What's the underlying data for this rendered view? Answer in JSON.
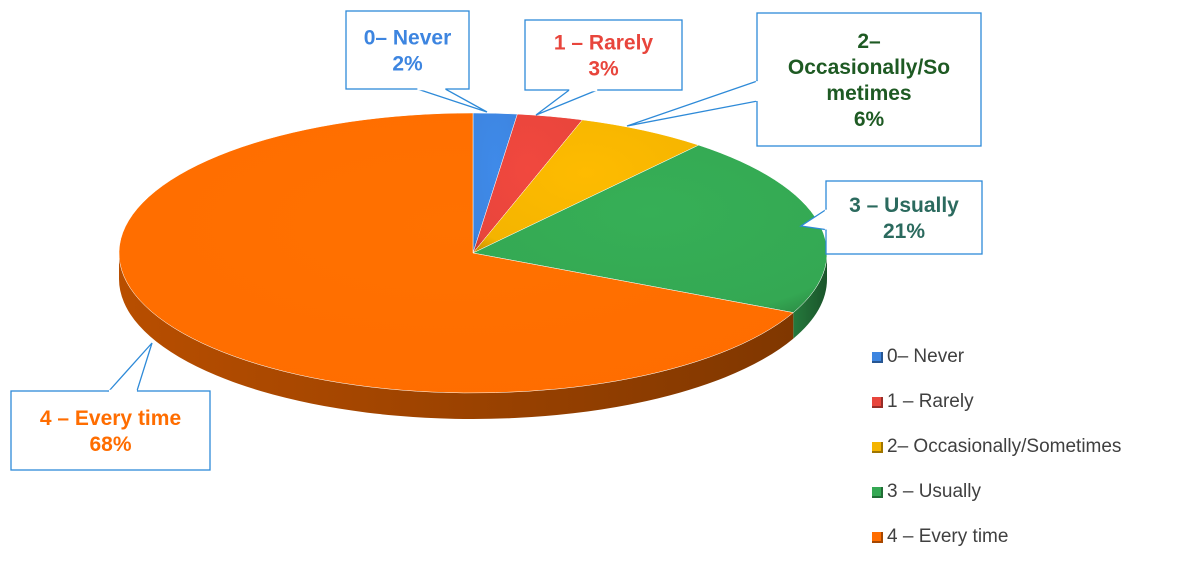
{
  "chart_data": {
    "type": "pie",
    "title": "",
    "style": "3d",
    "legend_position": "right",
    "slices": [
      {
        "category": "0– Never",
        "callout": [
          "0– Never"
        ],
        "value": 2,
        "label": "2%",
        "color": "#3d85e0",
        "label_color": "#3d85e0"
      },
      {
        "category": "1 – Rarely",
        "callout": [
          "1 – Rarely"
        ],
        "value": 3,
        "label": "3%",
        "color": "#e8453c",
        "label_color": "#e8453c"
      },
      {
        "category": "2– Occasionally/Sometimes",
        "callout": [
          "2–",
          "Occasionally/So",
          "metimes"
        ],
        "value": 6,
        "label": "6%",
        "color": "#f4b400",
        "label_color": "#1e5a23"
      },
      {
        "category": "3 – Usually",
        "callout": [
          "3 – Usually"
        ],
        "value": 21,
        "label": "21%",
        "color": "#34a853",
        "label_color": "#2b6a5e"
      },
      {
        "category": "4 – Every time",
        "callout": [
          "4 – Every time"
        ],
        "value": 68,
        "label": "68%",
        "color": "#ff6d00",
        "label_color": "#ff6d00"
      }
    ],
    "callout_border_color": "#2e8ad8"
  }
}
